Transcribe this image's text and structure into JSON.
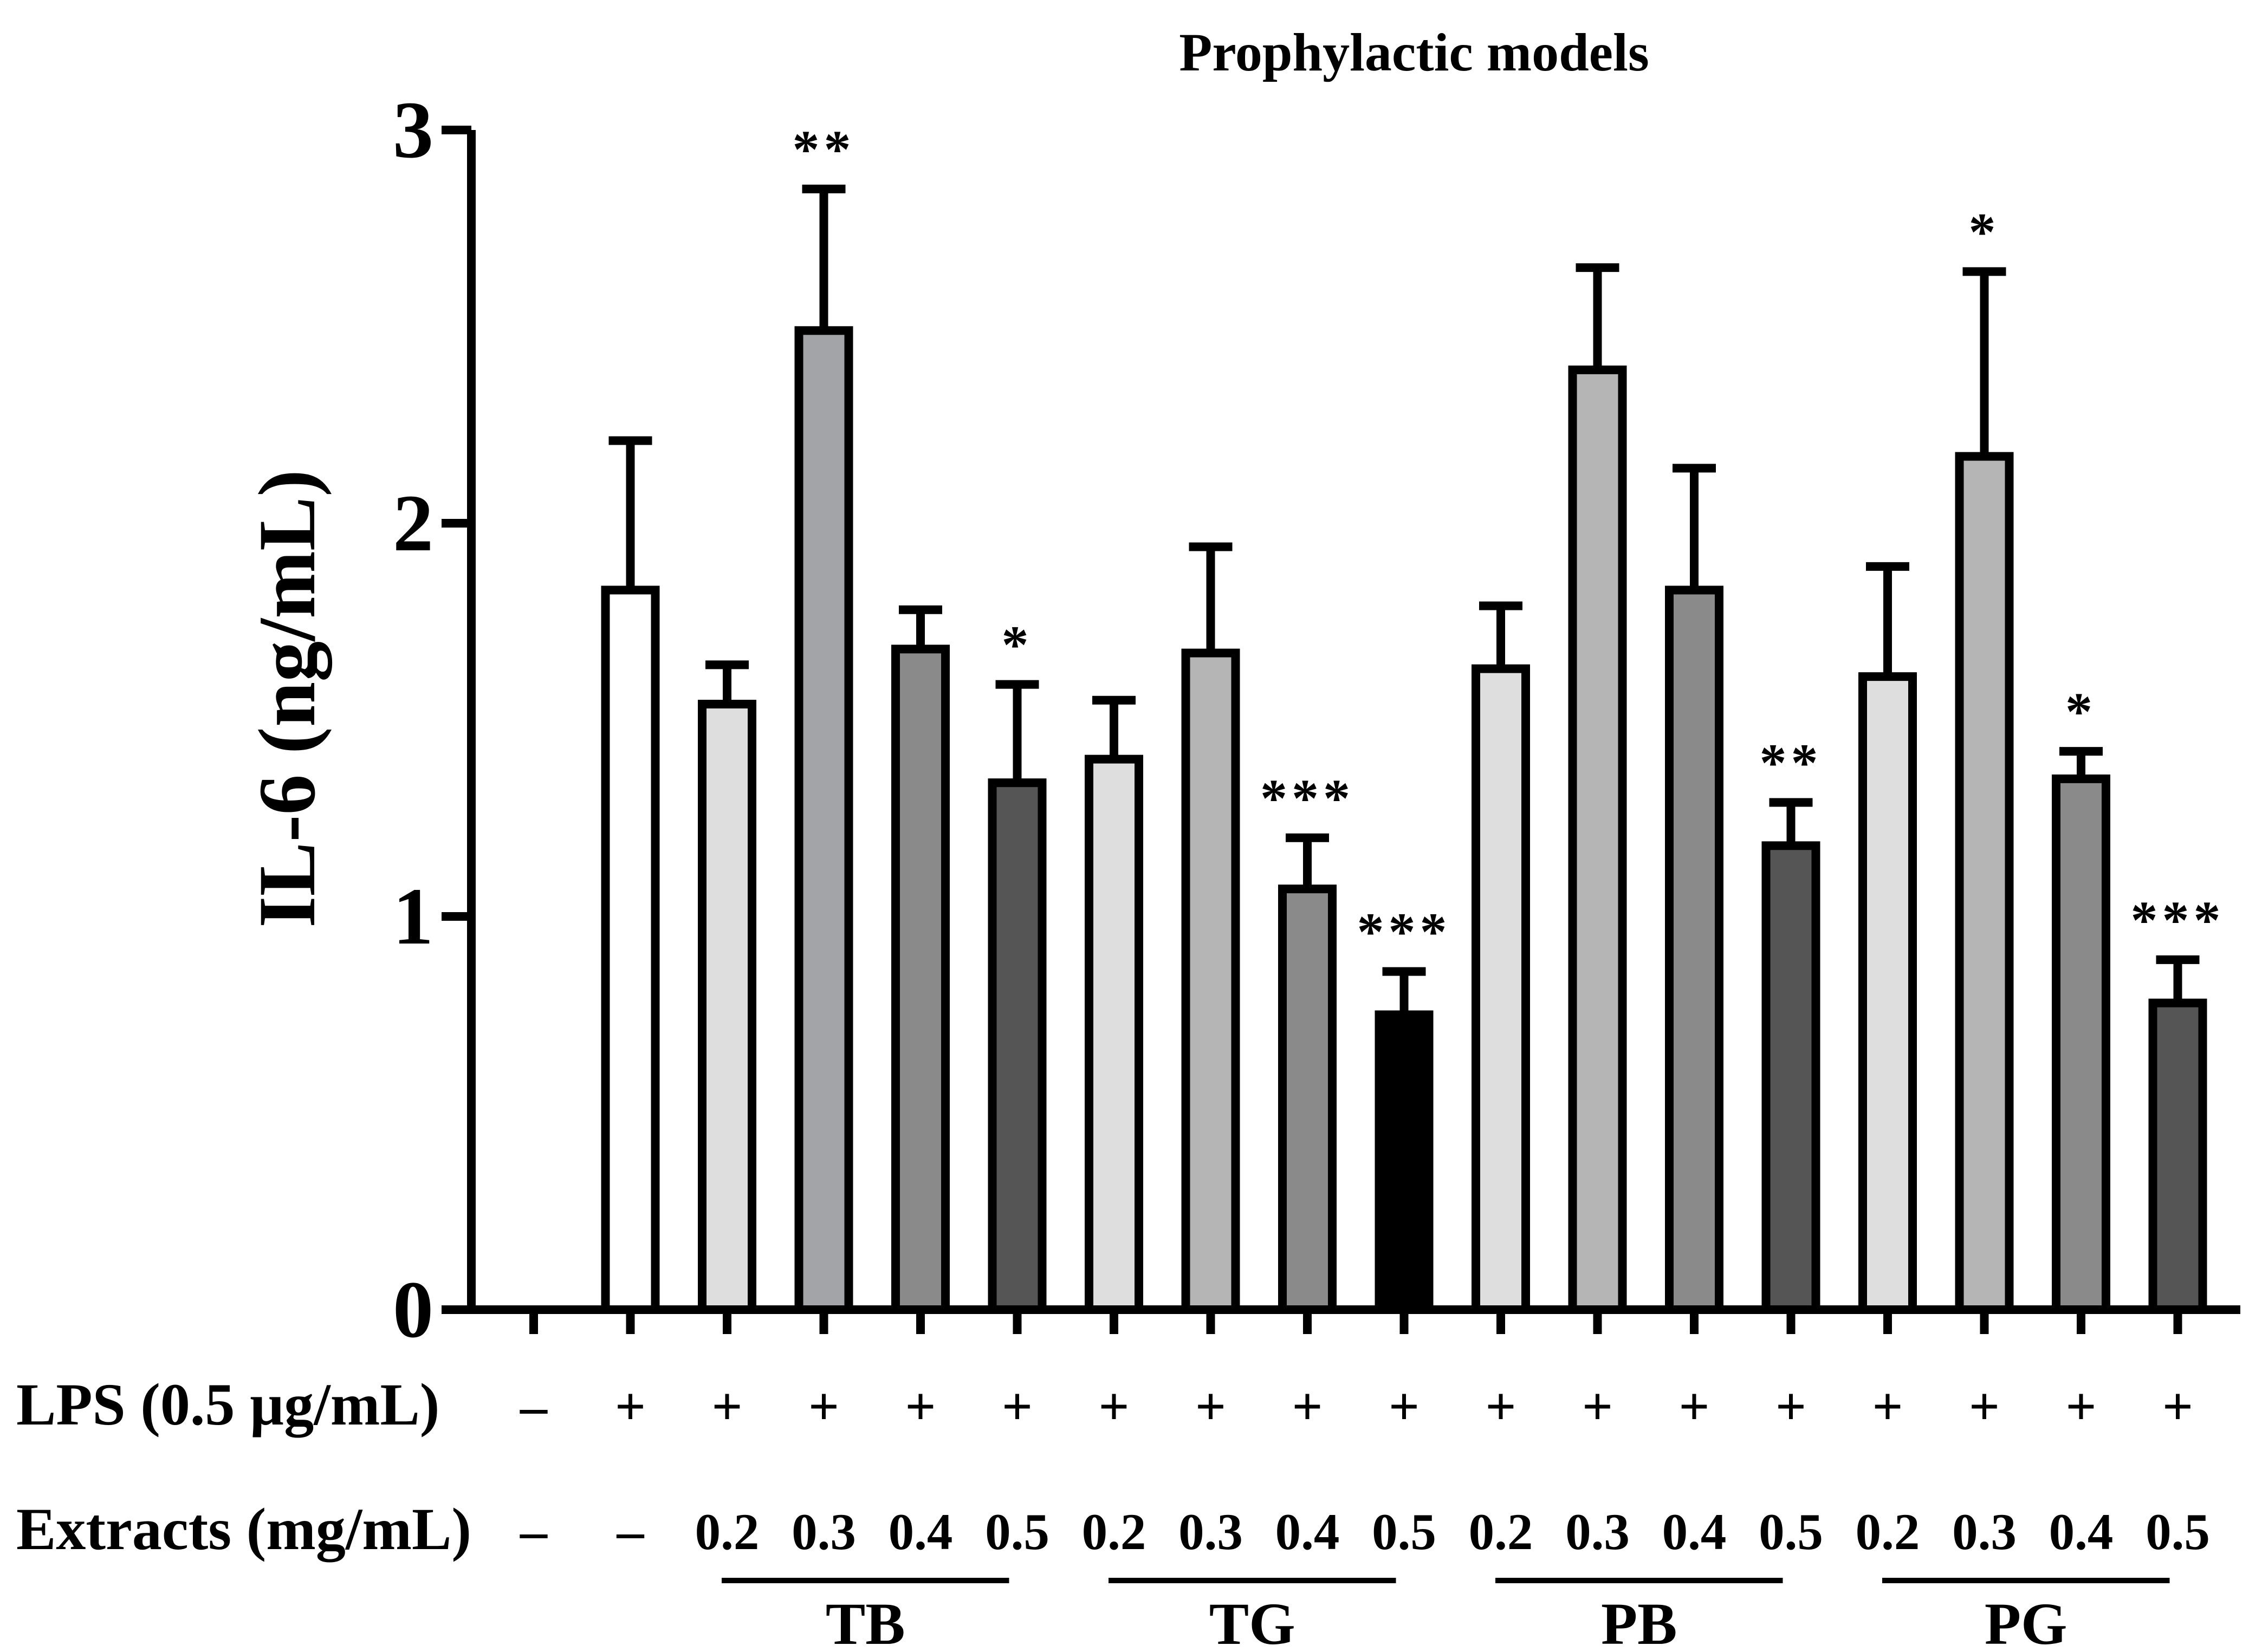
{
  "chart_data": {
    "type": "bar",
    "title": "Prophylactic models",
    "ylabel": "IL-6 (ng/mL)",
    "xlabel": "",
    "ylim": [
      0,
      3
    ],
    "yticks": [
      "0",
      "1",
      "2",
      "3"
    ],
    "rows": {
      "lps_label": "LPS (0.5 µg/mL)",
      "extracts_label": "Extracts (mg/mL)"
    },
    "bars": [
      {
        "lps": "–",
        "conc": "–",
        "value": 0,
        "error": 0,
        "sig": "",
        "fill": "#ffffff"
      },
      {
        "lps": "+",
        "conc": "–",
        "value": 1.83,
        "error": 0.38,
        "sig": "",
        "fill": "#ffffff"
      },
      {
        "lps": "+",
        "conc": "0.2",
        "value": 1.54,
        "error": 0.1,
        "sig": "",
        "fill": "#dedede"
      },
      {
        "lps": "+",
        "conc": "0.3",
        "value": 2.49,
        "error": 0.36,
        "sig": "**",
        "fill": "#a3a4a7"
      },
      {
        "lps": "+",
        "conc": "0.4",
        "value": 1.68,
        "error": 0.1,
        "sig": "",
        "fill": "#8a8a8a"
      },
      {
        "lps": "+",
        "conc": "0.5",
        "value": 1.34,
        "error": 0.25,
        "sig": "*",
        "fill": "#555555"
      },
      {
        "lps": "+",
        "conc": "0.2",
        "value": 1.4,
        "error": 0.15,
        "sig": "",
        "fill": "#dedede"
      },
      {
        "lps": "+",
        "conc": "0.3",
        "value": 1.67,
        "error": 0.27,
        "sig": "",
        "fill": "#b5b5b5"
      },
      {
        "lps": "+",
        "conc": "0.4",
        "value": 1.07,
        "error": 0.13,
        "sig": "***",
        "fill": "#8a8a8a"
      },
      {
        "lps": "+",
        "conc": "0.5",
        "value": 0.75,
        "error": 0.11,
        "sig": "***",
        "fill": "#000000"
      },
      {
        "lps": "+",
        "conc": "0.2",
        "value": 1.63,
        "error": 0.16,
        "sig": "",
        "fill": "#dedede"
      },
      {
        "lps": "+",
        "conc": "0.3",
        "value": 2.39,
        "error": 0.26,
        "sig": "",
        "fill": "#b5b5b5"
      },
      {
        "lps": "+",
        "conc": "0.4",
        "value": 1.83,
        "error": 0.31,
        "sig": "",
        "fill": "#8a8a8a"
      },
      {
        "lps": "+",
        "conc": "0.5",
        "value": 1.18,
        "error": 0.11,
        "sig": "**",
        "fill": "#555555"
      },
      {
        "lps": "+",
        "conc": "0.2",
        "value": 1.61,
        "error": 0.28,
        "sig": "",
        "fill": "#dedede"
      },
      {
        "lps": "+",
        "conc": "0.3",
        "value": 2.17,
        "error": 0.47,
        "sig": "*",
        "fill": "#b5b5b5"
      },
      {
        "lps": "+",
        "conc": "0.4",
        "value": 1.35,
        "error": 0.07,
        "sig": "*",
        "fill": "#8a8a8a"
      },
      {
        "lps": "+",
        "conc": "0.5",
        "value": 0.78,
        "error": 0.11,
        "sig": "***",
        "fill": "#555555"
      }
    ],
    "groups": [
      {
        "label": "TB",
        "start": 2,
        "end": 5
      },
      {
        "label": "TG",
        "start": 6,
        "end": 9
      },
      {
        "label": "PB",
        "start": 10,
        "end": 13
      },
      {
        "label": "PG",
        "start": 14,
        "end": 17
      }
    ]
  }
}
